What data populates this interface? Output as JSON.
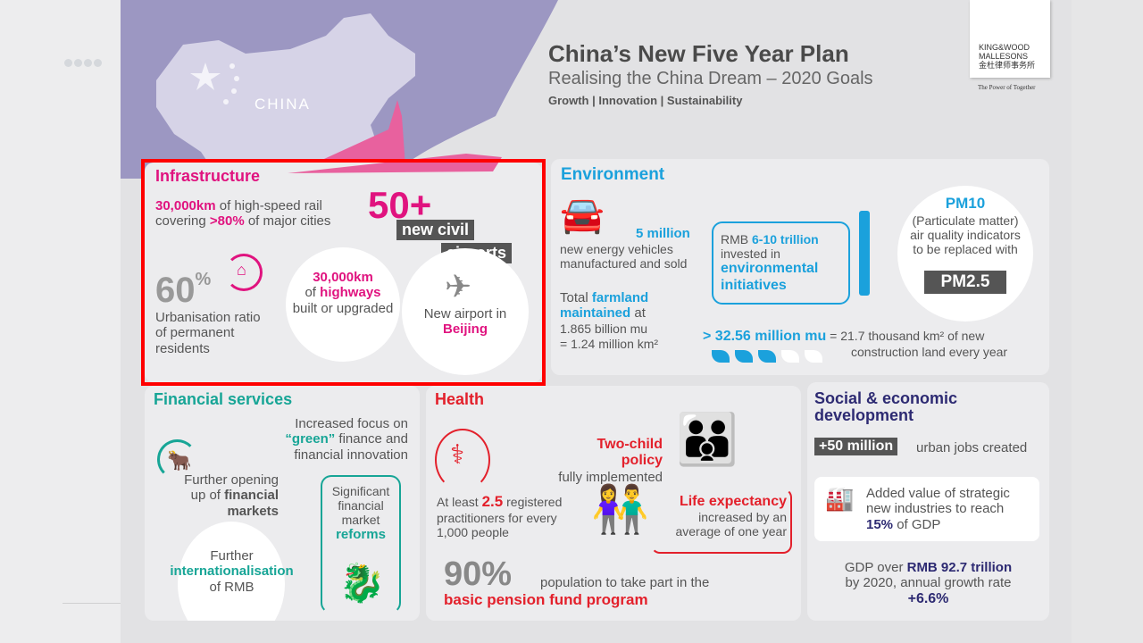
{
  "viewer": {
    "nav_dots": 4
  },
  "header": {
    "title": "China’s New Five Year Plan",
    "subtitle": "Realising the China Dream – 2020 Goals",
    "tagline": "Growth | Innovation | Sustainability",
    "map_label": "CHINA"
  },
  "logo": {
    "line1": "KING&WOOD",
    "line2": "MALLESONS",
    "line3": "金杜律师事务所",
    "slogan": "The Power of Together"
  },
  "infrastructure": {
    "title": "Infrastructure",
    "rail_value": "30,000km",
    "rail_text1": " of high-speed rail",
    "rail_text2": "covering ",
    "rail_pct": ">80%",
    "rail_text3": " of major cities",
    "airports_value": "50+",
    "airports_l1": "new civil",
    "airports_l2": "airports",
    "urban_value": "60",
    "urban_unit": "%",
    "urban_text": "Urbanisation ratio of permanent residents",
    "hw_value": "30,000km",
    "hw_of": "of ",
    "hw_bold": "highways",
    "hw_rest": "built or upgraded",
    "airport_text": "New airport in ",
    "airport_city": "Beijing"
  },
  "environment": {
    "title": "Environment",
    "ev_value": "5 million",
    "ev_text": "new energy vehicles manufactured and sold",
    "farm_pre": "Total ",
    "farm_bold": "farmland maintained",
    "farm_post": " at",
    "farm_l2": "1.865 billion mu",
    "farm_l3": "= 1.24 million km²",
    "inv_pre": "RMB ",
    "inv_value": "6-10 trillion",
    "inv_text": "invested in",
    "inv_bold": "environmental initiatives",
    "pm_title": "PM10",
    "pm_text": "(Particulate matter) air quality indicators to be replaced with",
    "pm_new": "PM2.5",
    "land_value": "> 32.56 million mu",
    "land_text1": " = 21.7 thousand km² of new",
    "land_text2": "construction land every year",
    "leaves_filled": 3,
    "leaves_total": 5
  },
  "financial": {
    "title": "Financial services",
    "green_l1": "Increased focus on",
    "green_bold": "“green”",
    "green_l2": " finance and",
    "green_l3": "financial innovation",
    "open_l1": "Further opening",
    "open_l2": "up of ",
    "open_bold1": "financial",
    "open_bold2": "markets",
    "ref_l1": "Significant",
    "ref_l2": "financial",
    "ref_l3": "market",
    "ref_bold": "reforms",
    "intl_l1": "Further",
    "intl_bold": "internationalisation",
    "intl_l3": "of RMB"
  },
  "health": {
    "title": "Health",
    "child_bold": "Two-child policy",
    "child_text": "fully implemented",
    "prac_pre": "At least ",
    "prac_value": "2.5",
    "prac_post": " registered",
    "prac_l2": "practitioners for every",
    "prac_l3": "1,000 people",
    "life_bold": "Life expectancy",
    "life_l2": "increased by an",
    "life_l3": "average of one year",
    "pension_value": "90%",
    "pension_text": " population to take part in the",
    "pension_bold": "basic pension fund program"
  },
  "social": {
    "title": "Social & economic development",
    "jobs_value": "+50 million",
    "jobs_text": "urban jobs created",
    "ind_l1": "Added value of strategic",
    "ind_l2": "new industries to reach",
    "ind_value": "15%",
    "ind_post": " of GDP",
    "gdp_pre": "GDP over ",
    "gdp_value": "RMB 92.7 trillion",
    "gdp_l2": "by 2020, annual growth rate",
    "gdp_rate": "+6.6%"
  },
  "colors": {
    "infrastructure": "#e0137f",
    "environment": "#1ba1dc",
    "financial": "#17a596",
    "health": "#e3202b",
    "social": "#2d2a72",
    "highlight": "#ff0000"
  }
}
